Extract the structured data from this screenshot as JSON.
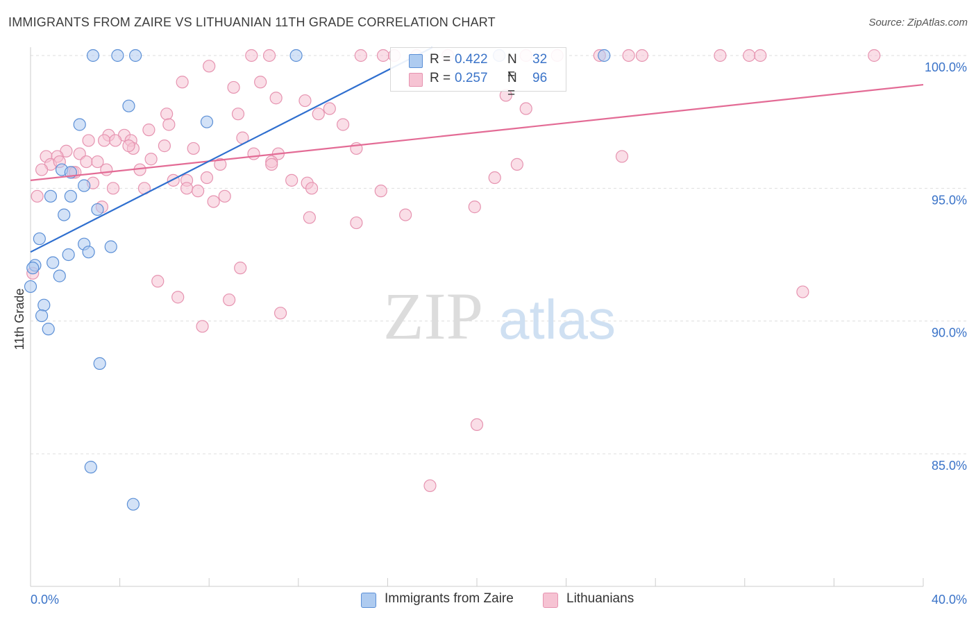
{
  "title": "IMMIGRANTS FROM ZAIRE VS LITHUANIAN 11TH GRADE CORRELATION CHART",
  "source": "Source: ZipAtlas.com",
  "watermark": {
    "zip": "ZIP",
    "atlas": "atlas"
  },
  "legend": {
    "series1": {
      "r_label": "R =",
      "r_value": "0.422",
      "n_label": "N =",
      "n_value": "32"
    },
    "series2": {
      "r_label": "R =",
      "r_value": "0.257",
      "n_label": "N =",
      "n_value": "96"
    }
  },
  "bottom_legend": {
    "series1": "Immigrants from Zaire",
    "series2": "Lithuanians"
  },
  "colors": {
    "series1_fill": "#aecbf0",
    "series1_stroke": "#5b8fd6",
    "series1_line": "#2f6fcf",
    "series2_fill": "#f6c3d3",
    "series2_stroke": "#e693b0",
    "series2_line": "#e36b95",
    "tick_label": "#3a73c8"
  },
  "chart_data": {
    "type": "scatter",
    "title": "IMMIGRANTS FROM ZAIRE VS LITHUANIAN 11TH GRADE CORRELATION CHART",
    "xlabel": "",
    "ylabel": "11th Grade",
    "xlim": [
      0,
      40
    ],
    "ylim": [
      80.5,
      100.8
    ],
    "x_tick_labels": [
      "0.0%",
      "40.0%"
    ],
    "y_ticks": [
      85,
      90,
      95,
      100
    ],
    "y_tick_labels": [
      "85.0%",
      "90.0%",
      "95.0%",
      "100.0%"
    ],
    "grid": true,
    "legend_position": "top-center",
    "series": [
      {
        "name": "Immigrants from Zaire",
        "r": 0.422,
        "n": 32,
        "trend": {
          "x": [
            0,
            18
          ],
          "y": [
            92.6,
            100.3
          ]
        },
        "points": [
          [
            2.8,
            100
          ],
          [
            3.9,
            100
          ],
          [
            4.7,
            100
          ],
          [
            11.9,
            100
          ],
          [
            25.7,
            100
          ],
          [
            4.4,
            98.1
          ],
          [
            2.2,
            97.4
          ],
          [
            7.9,
            97.5
          ],
          [
            1.4,
            95.7
          ],
          [
            1.8,
            95.6
          ],
          [
            2.4,
            95.1
          ],
          [
            0.9,
            94.7
          ],
          [
            1.8,
            94.7
          ],
          [
            1.5,
            94.0
          ],
          [
            3.0,
            94.2
          ],
          [
            0.4,
            93.1
          ],
          [
            2.4,
            92.9
          ],
          [
            3.6,
            92.8
          ],
          [
            2.6,
            92.6
          ],
          [
            1.7,
            92.5
          ],
          [
            0.2,
            92.1
          ],
          [
            1.0,
            92.2
          ],
          [
            1.3,
            91.7
          ],
          [
            0.0,
            91.3
          ],
          [
            0.6,
            90.6
          ],
          [
            0.5,
            90.2
          ],
          [
            0.8,
            89.7
          ],
          [
            3.1,
            88.4
          ],
          [
            2.7,
            84.5
          ],
          [
            4.6,
            83.1
          ],
          [
            0.1,
            92.0
          ],
          [
            21.0,
            100
          ]
        ]
      },
      {
        "name": "Lithuanians",
        "r": 0.257,
        "n": 96,
        "trend": {
          "x": [
            0,
            40
          ],
          "y": [
            95.3,
            98.9
          ]
        },
        "points": [
          [
            9.9,
            100
          ],
          [
            10.7,
            100
          ],
          [
            14.8,
            100
          ],
          [
            15.8,
            100
          ],
          [
            16.3,
            100
          ],
          [
            17.3,
            100
          ],
          [
            18.7,
            100
          ],
          [
            21.0,
            100
          ],
          [
            22.2,
            100
          ],
          [
            23.6,
            100
          ],
          [
            25.5,
            100
          ],
          [
            26.8,
            100
          ],
          [
            27.4,
            100
          ],
          [
            30.9,
            100
          ],
          [
            32.2,
            100
          ],
          [
            32.7,
            100
          ],
          [
            37.8,
            100
          ],
          [
            8.0,
            99.6
          ],
          [
            6.8,
            99.0
          ],
          [
            9.1,
            98.8
          ],
          [
            10.3,
            99.0
          ],
          [
            11.0,
            98.4
          ],
          [
            12.3,
            98.3
          ],
          [
            12.9,
            97.8
          ],
          [
            13.4,
            98.0
          ],
          [
            21.3,
            98.5
          ],
          [
            22.2,
            98.0
          ],
          [
            6.1,
            97.8
          ],
          [
            6.2,
            97.4
          ],
          [
            5.3,
            97.2
          ],
          [
            9.3,
            97.8
          ],
          [
            14.0,
            97.4
          ],
          [
            2.6,
            96.8
          ],
          [
            3.5,
            97.0
          ],
          [
            4.2,
            97.0
          ],
          [
            3.3,
            96.8
          ],
          [
            3.8,
            96.8
          ],
          [
            4.5,
            96.8
          ],
          [
            4.6,
            96.5
          ],
          [
            4.4,
            96.6
          ],
          [
            6.0,
            96.6
          ],
          [
            7.3,
            96.5
          ],
          [
            9.5,
            96.9
          ],
          [
            1.6,
            96.4
          ],
          [
            0.7,
            96.2
          ],
          [
            1.2,
            96.2
          ],
          [
            2.2,
            96.3
          ],
          [
            5.4,
            96.1
          ],
          [
            10.0,
            96.3
          ],
          [
            11.1,
            96.3
          ],
          [
            14.6,
            96.5
          ],
          [
            26.5,
            96.2
          ],
          [
            0.9,
            95.9
          ],
          [
            1.3,
            96.0
          ],
          [
            2.5,
            96.0
          ],
          [
            3.0,
            96.0
          ],
          [
            8.5,
            95.9
          ],
          [
            10.8,
            96.0
          ],
          [
            21.8,
            95.9
          ],
          [
            0.5,
            95.7
          ],
          [
            1.9,
            95.6
          ],
          [
            4.9,
            95.7
          ],
          [
            6.4,
            95.3
          ],
          [
            2.8,
            95.2
          ],
          [
            7.0,
            95.3
          ],
          [
            7.9,
            95.4
          ],
          [
            11.7,
            95.3
          ],
          [
            12.4,
            95.2
          ],
          [
            20.8,
            95.4
          ],
          [
            3.7,
            95.0
          ],
          [
            5.1,
            95.0
          ],
          [
            7.0,
            95.0
          ],
          [
            7.5,
            94.9
          ],
          [
            12.6,
            95.0
          ],
          [
            15.7,
            94.9
          ],
          [
            8.2,
            94.5
          ],
          [
            8.7,
            94.7
          ],
          [
            0.3,
            94.7
          ],
          [
            3.2,
            94.3
          ],
          [
            19.9,
            94.3
          ],
          [
            12.5,
            93.9
          ],
          [
            14.6,
            93.7
          ],
          [
            16.8,
            94.0
          ],
          [
            0.1,
            91.8
          ],
          [
            9.4,
            92.0
          ],
          [
            5.7,
            91.5
          ],
          [
            34.6,
            91.1
          ],
          [
            6.6,
            90.9
          ],
          [
            8.9,
            90.8
          ],
          [
            11.2,
            90.3
          ],
          [
            7.7,
            89.8
          ],
          [
            20.0,
            86.1
          ],
          [
            17.9,
            83.8
          ],
          [
            2.0,
            95.6
          ],
          [
            3.4,
            95.7
          ],
          [
            10.8,
            95.9
          ]
        ]
      }
    ]
  }
}
